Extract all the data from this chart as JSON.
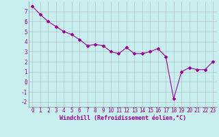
{
  "x": [
    0,
    1,
    2,
    3,
    4,
    5,
    6,
    7,
    8,
    9,
    10,
    11,
    12,
    13,
    14,
    15,
    16,
    17,
    18,
    19,
    20,
    21,
    22,
    23
  ],
  "y": [
    7.5,
    6.7,
    6.0,
    5.5,
    5.0,
    4.7,
    4.2,
    3.6,
    3.7,
    3.6,
    3.0,
    2.8,
    3.4,
    2.8,
    2.8,
    3.0,
    3.3,
    2.5,
    -1.7,
    1.0,
    1.4,
    1.2,
    1.2,
    2.0
  ],
  "line_color": "#990099",
  "marker": "D",
  "marker_size": 2,
  "background_color": "#c8eef0",
  "grid_color": "#aaaaaa",
  "xlabel": "Windchill (Refroidissement éolien,°C)",
  "xlim": [
    -0.5,
    23.5
  ],
  "ylim": [
    -2.5,
    8.0
  ],
  "yticks": [
    -2,
    -1,
    0,
    1,
    2,
    3,
    4,
    5,
    6,
    7
  ],
  "xticks": [
    0,
    1,
    2,
    3,
    4,
    5,
    6,
    7,
    8,
    9,
    10,
    11,
    12,
    13,
    14,
    15,
    16,
    17,
    18,
    19,
    20,
    21,
    22,
    23
  ],
  "tick_color": "#990099",
  "label_color": "#990099",
  "tick_fontsize": 5.5,
  "xlabel_fontsize": 6.0
}
